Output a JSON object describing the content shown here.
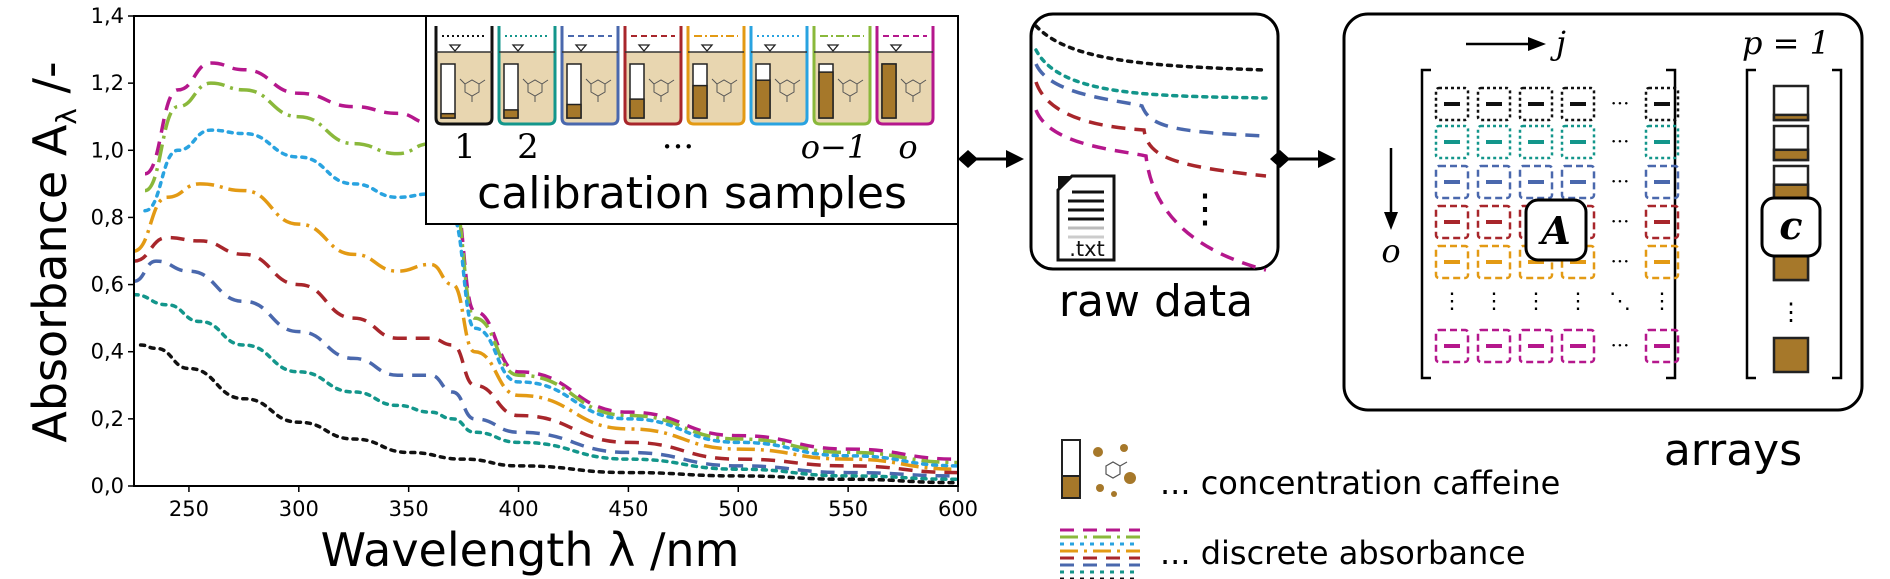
{
  "colors": {
    "magenta": "#b5178c",
    "green": "#8ab83b",
    "blue_light": "#29a3e0",
    "orange": "#e39a14",
    "red": "#a8262b",
    "blue_dark": "#4a68ad",
    "teal": "#13968b",
    "black": "#111111",
    "brown": "#a6782a",
    "tan": "#e8d6b0"
  },
  "chart": {
    "xlabel": "Wavelength λ /nm",
    "ylabel": "Absorbance A",
    "ylabel_sub": "λ",
    "ylabel_unit": " /-",
    "x_tick_labels": [
      "250",
      "300",
      "350",
      "400",
      "450",
      "500",
      "550",
      "600"
    ],
    "y_tick_labels": [
      "0,0",
      "0,2",
      "0,4",
      "0,6",
      "0,8",
      "1,0",
      "1,2",
      "1,4"
    ]
  },
  "chart_data": {
    "type": "line",
    "title": "",
    "xlabel": "Wavelength λ /nm",
    "ylabel": "Absorbance Aλ /-",
    "xlim": [
      225,
      600
    ],
    "ylim": [
      0,
      1.4
    ],
    "grid": false,
    "series": [
      {
        "color": "#b5178c",
        "style": "dashed",
        "x": [
          230,
          245,
          260,
          275,
          300,
          325,
          345,
          360,
          370,
          380,
          400,
          450,
          500,
          550,
          600
        ],
        "y": [
          0.93,
          1.18,
          1.26,
          1.24,
          1.17,
          1.13,
          1.11,
          1.08,
          0.88,
          0.52,
          0.34,
          0.22,
          0.15,
          0.11,
          0.08
        ]
      },
      {
        "color": "#8ab83b",
        "style": "dashdot",
        "x": [
          230,
          245,
          260,
          275,
          300,
          325,
          345,
          360,
          370,
          380,
          400,
          450,
          500,
          550,
          600
        ],
        "y": [
          0.88,
          1.13,
          1.2,
          1.18,
          1.1,
          1.02,
          0.99,
          1.02,
          0.86,
          0.5,
          0.33,
          0.21,
          0.14,
          0.1,
          0.07
        ]
      },
      {
        "color": "#29a3e0",
        "style": "dotted",
        "x": [
          230,
          245,
          260,
          275,
          300,
          325,
          345,
          360,
          370,
          380,
          400,
          450,
          500,
          550,
          600
        ],
        "y": [
          0.82,
          1.0,
          1.06,
          1.05,
          0.98,
          0.9,
          0.86,
          0.87,
          0.8,
          0.47,
          0.31,
          0.2,
          0.13,
          0.09,
          0.06
        ]
      },
      {
        "color": "#e39a14",
        "style": "dashdot",
        "x": [
          225,
          240,
          255,
          275,
          300,
          325,
          345,
          360,
          370,
          380,
          400,
          450,
          500,
          550,
          600
        ],
        "y": [
          0.7,
          0.86,
          0.9,
          0.88,
          0.78,
          0.69,
          0.64,
          0.66,
          0.6,
          0.4,
          0.27,
          0.17,
          0.11,
          0.08,
          0.05
        ]
      },
      {
        "color": "#a8262b",
        "style": "dashed",
        "x": [
          225,
          240,
          255,
          275,
          300,
          325,
          345,
          360,
          370,
          380,
          400,
          450,
          500,
          550,
          600
        ],
        "y": [
          0.67,
          0.74,
          0.73,
          0.69,
          0.6,
          0.5,
          0.44,
          0.44,
          0.42,
          0.3,
          0.21,
          0.13,
          0.08,
          0.06,
          0.04
        ]
      },
      {
        "color": "#4a68ad",
        "style": "dashed",
        "x": [
          225,
          235,
          250,
          275,
          300,
          325,
          345,
          360,
          370,
          380,
          400,
          450,
          500,
          550,
          600
        ],
        "y": [
          0.61,
          0.67,
          0.64,
          0.55,
          0.46,
          0.38,
          0.33,
          0.33,
          0.28,
          0.2,
          0.16,
          0.1,
          0.06,
          0.04,
          0.03
        ]
      },
      {
        "color": "#13968b",
        "style": "dotted",
        "x": [
          225,
          240,
          255,
          275,
          300,
          325,
          345,
          360,
          370,
          380,
          400,
          450,
          500,
          550,
          600
        ],
        "y": [
          0.57,
          0.54,
          0.49,
          0.42,
          0.34,
          0.28,
          0.24,
          0.22,
          0.2,
          0.16,
          0.13,
          0.08,
          0.05,
          0.03,
          0.02
        ]
      },
      {
        "color": "#111111",
        "style": "dotted",
        "x": [
          228,
          235,
          250,
          275,
          300,
          325,
          350,
          375,
          400,
          450,
          500,
          550,
          600
        ],
        "y": [
          0.42,
          0.41,
          0.35,
          0.26,
          0.19,
          0.14,
          0.1,
          0.08,
          0.06,
          0.04,
          0.03,
          0.02,
          0.01
        ]
      }
    ]
  },
  "calibration": {
    "label": "calibration samples",
    "numbers": [
      "1",
      "2",
      "···",
      "o−1",
      "o"
    ]
  },
  "raw": {
    "label": "raw data",
    "file": ".txt",
    "dots": "⋮"
  },
  "arrays": {
    "label": "arrays",
    "j": "j",
    "o": "o",
    "p": "p = 1",
    "A": "A",
    "c": "c",
    "dots_h": "···",
    "dots_v": "⋮",
    "dots_d": "⋱"
  },
  "legend": {
    "caffeine": "... concentration caffeine",
    "absorbance": "... discrete absorbance"
  }
}
